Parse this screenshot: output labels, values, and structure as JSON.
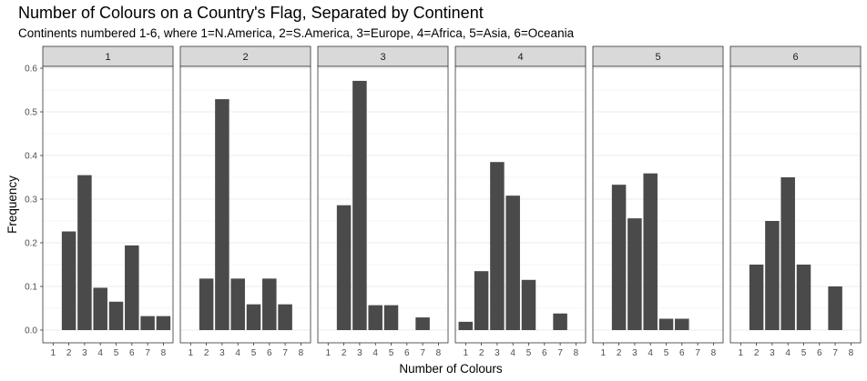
{
  "chart_data": {
    "type": "bar",
    "title": "Number of Colours on a Country's Flag, Separated by Continent",
    "subtitle": "Continents numbered 1-6, where 1=N.America, 2=S.America, 3=Europe, 4=Africa, 5=Asia, 6=Oceania",
    "xlabel": "Number of Colours",
    "ylabel": "Frequency",
    "ylim": [
      0,
      0.6
    ],
    "yticks": [
      "0.0",
      "0.1",
      "0.2",
      "0.3",
      "0.4",
      "0.5",
      "0.6"
    ],
    "x_ticks": [
      "1",
      "2",
      "3",
      "4",
      "5",
      "6",
      "7",
      "8"
    ],
    "grid": true,
    "colors": {
      "bar": "#4a4a4a",
      "strip": "#d9d9d9",
      "grid": "#ebebeb",
      "panel_border": "#333333"
    },
    "facets": [
      {
        "label": "1",
        "x": [
          2,
          3,
          4,
          5,
          6,
          7,
          8
        ],
        "values": [
          0.226,
          0.355,
          0.097,
          0.065,
          0.194,
          0.032,
          0.032
        ]
      },
      {
        "label": "2",
        "x": [
          2,
          3,
          4,
          5,
          6,
          7
        ],
        "values": [
          0.118,
          0.529,
          0.118,
          0.059,
          0.118,
          0.059
        ]
      },
      {
        "label": "3",
        "x": [
          2,
          3,
          4,
          5,
          7
        ],
        "values": [
          0.286,
          0.571,
          0.057,
          0.057,
          0.029
        ]
      },
      {
        "label": "4",
        "x": [
          1,
          2,
          3,
          4,
          5,
          7
        ],
        "values": [
          0.019,
          0.135,
          0.385,
          0.308,
          0.115,
          0.038
        ]
      },
      {
        "label": "5",
        "x": [
          2,
          3,
          4,
          5,
          6
        ],
        "values": [
          0.333,
          0.256,
          0.359,
          0.026,
          0.026
        ]
      },
      {
        "label": "6",
        "x": [
          2,
          3,
          4,
          5,
          7
        ],
        "values": [
          0.15,
          0.25,
          0.35,
          0.15,
          0.1
        ]
      }
    ]
  }
}
